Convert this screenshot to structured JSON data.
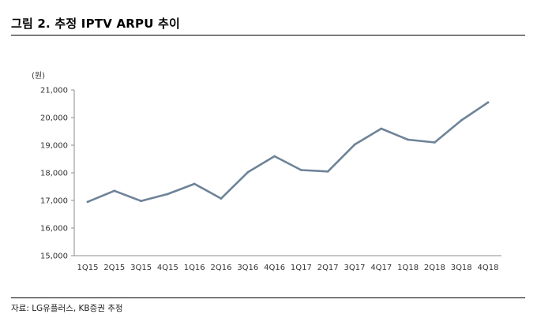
{
  "figure": {
    "title": "그림 2. 추정 IPTV ARPU 추이",
    "source": "자료: LG유플러스, KB증권 추정"
  },
  "chart_data": {
    "type": "line",
    "title": "그림 2. 추정 IPTV ARPU 추이",
    "ylabel": "(원)",
    "xlabel": "",
    "ylim": [
      15000,
      21000
    ],
    "yticks": [
      15000,
      16000,
      17000,
      18000,
      19000,
      20000,
      21000
    ],
    "ytick_labels": [
      "15,000",
      "16,000",
      "17,000",
      "18,000",
      "19,000",
      "20,000",
      "21,000"
    ],
    "grid": false,
    "legend": "none",
    "categories": [
      "1Q15",
      "2Q15",
      "3Q15",
      "4Q15",
      "1Q16",
      "2Q16",
      "3Q16",
      "4Q16",
      "1Q17",
      "2Q17",
      "3Q17",
      "4Q17",
      "1Q18",
      "2Q18",
      "3Q18",
      "4Q18"
    ],
    "series": [
      {
        "name": "IPTV ARPU",
        "color": "#6e8398",
        "values": [
          16950,
          17350,
          16980,
          17230,
          17600,
          17070,
          18020,
          18600,
          18100,
          18050,
          19020,
          19600,
          19200,
          19100,
          19900,
          20550
        ]
      }
    ]
  }
}
